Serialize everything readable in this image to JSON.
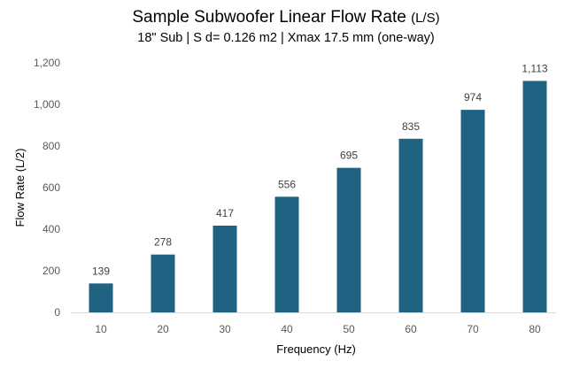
{
  "chart_data": {
    "type": "bar",
    "title": "Sample Subwoofer Linear Flow Rate",
    "title_unit": "(L/S)",
    "subtitle": "18\" Sub  | S d=  0.126 m2  | Xmax 17.5 mm (one-way)",
    "xlabel": "Frequency (Hz)",
    "ylabel": "Flow Rate (L/2)",
    "categories": [
      "10",
      "20",
      "30",
      "40",
      "50",
      "60",
      "70",
      "80"
    ],
    "values": [
      139,
      278,
      417,
      556,
      695,
      835,
      974,
      1113
    ],
    "data_labels": [
      "139",
      "278",
      "417",
      "556",
      "695",
      "835",
      "974",
      "1,113"
    ],
    "yticks": [
      0,
      200,
      400,
      600,
      800,
      1000,
      1200
    ],
    "ytick_labels": [
      "0",
      "200",
      "400",
      "600",
      "800",
      "1,000",
      "1,200"
    ],
    "ylim": [
      0,
      1200
    ],
    "grid": false,
    "bar_color": "#1f6282"
  }
}
